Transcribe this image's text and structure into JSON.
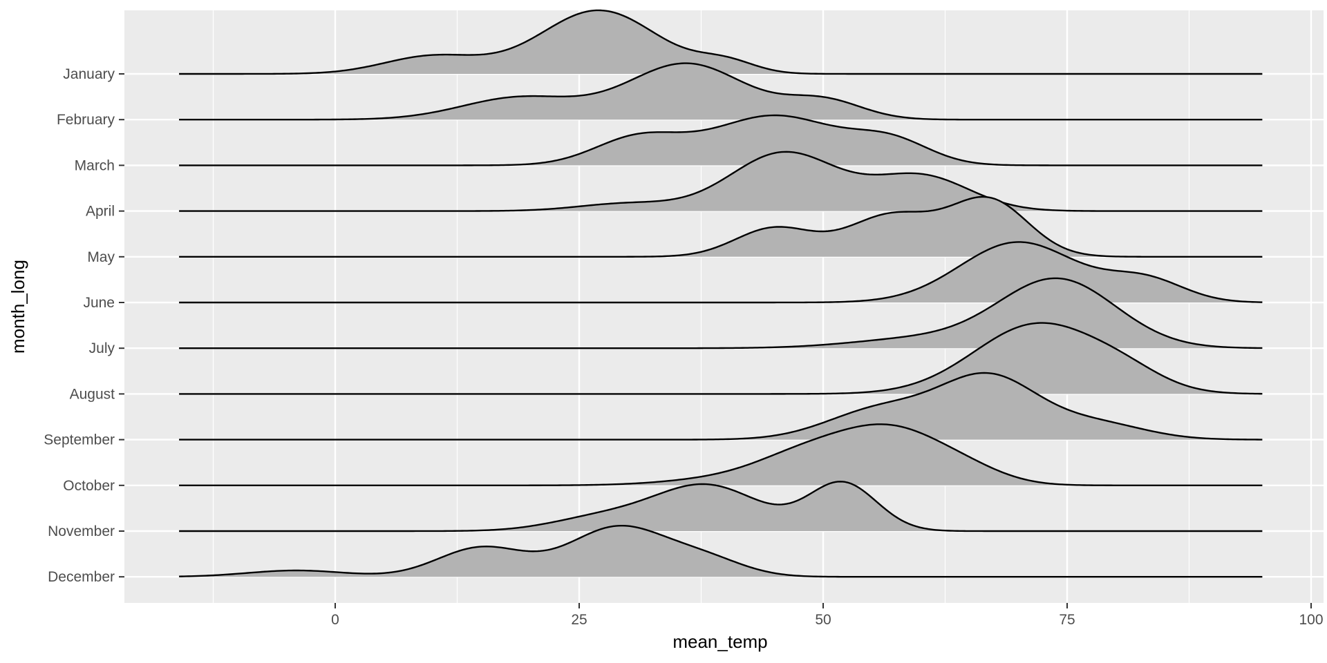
{
  "chart_data": {
    "type": "ridgeline",
    "xlabel": "mean_temp",
    "ylabel": "month_long",
    "xlim": [
      -22,
      100
    ],
    "x_ticks": [
      0,
      25,
      50,
      75,
      100
    ],
    "x_range": [
      -16,
      95
    ],
    "grid": true,
    "legend": "none",
    "colors": {
      "panel": "#EBEBEB",
      "grid": "#FFFFFF",
      "fill": "#B3B3B3",
      "line": "#000000",
      "tick_text": "#4D4D4D"
    },
    "series": [
      {
        "name": "January",
        "peaks": [
          [
            10,
            0.28,
            5
          ],
          [
            27,
            1.0,
            6
          ],
          [
            40,
            0.18,
            3
          ]
        ]
      },
      {
        "name": "February",
        "peaks": [
          [
            19,
            0.35,
            6
          ],
          [
            36,
            0.88,
            6
          ],
          [
            50,
            0.3,
            4
          ]
        ]
      },
      {
        "name": "March",
        "peaks": [
          [
            31,
            0.42,
            4.5
          ],
          [
            45,
            0.78,
            6.5
          ],
          [
            57,
            0.35,
            4
          ]
        ]
      },
      {
        "name": "April",
        "peaks": [
          [
            30,
            0.12,
            5
          ],
          [
            46,
            0.92,
            5.5
          ],
          [
            60,
            0.55,
            5
          ]
        ]
      },
      {
        "name": "May",
        "peaks": [
          [
            45,
            0.45,
            4
          ],
          [
            57,
            0.65,
            4.5
          ],
          [
            67,
            0.88,
            4
          ]
        ]
      },
      {
        "name": "June",
        "peaks": [
          [
            70,
            0.95,
            6
          ],
          [
            83,
            0.35,
            4
          ]
        ]
      },
      {
        "name": "July",
        "peaks": [
          [
            60,
            0.15,
            7
          ],
          [
            74,
            1.08,
            6
          ]
        ]
      },
      {
        "name": "August",
        "peaks": [
          [
            72,
            1.1,
            6.5
          ],
          [
            81,
            0.2,
            4
          ]
        ]
      },
      {
        "name": "September",
        "peaks": [
          [
            56,
            0.48,
            5.5
          ],
          [
            67,
            0.96,
            5
          ],
          [
            78,
            0.25,
            5
          ]
        ]
      },
      {
        "name": "October",
        "peaks": [
          [
            40,
            0.1,
            6
          ],
          [
            48,
            0.4,
            5
          ],
          [
            57,
            0.85,
            5.5
          ],
          [
            65,
            0.15,
            4
          ]
        ]
      },
      {
        "name": "November",
        "peaks": [
          [
            27,
            0.2,
            5
          ],
          [
            38,
            0.72,
            5.5
          ],
          [
            52,
            0.75,
            3.5
          ]
        ]
      },
      {
        "name": "December",
        "peaks": [
          [
            -4,
            0.1,
            5
          ],
          [
            15,
            0.46,
            4.5
          ],
          [
            29,
            0.78,
            5
          ],
          [
            38,
            0.25,
            4
          ]
        ]
      }
    ]
  }
}
